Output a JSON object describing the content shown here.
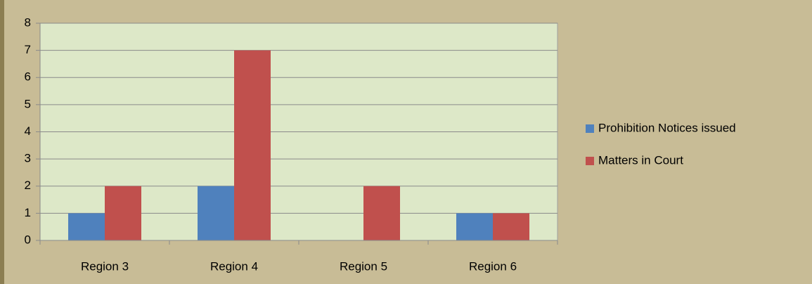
{
  "chart_data": {
    "type": "bar",
    "categories": [
      "Region 3",
      "Region 4",
      "Region 5",
      "Region 6"
    ],
    "series": [
      {
        "name": "Prohibition Notices issued",
        "color": "#4f81bd",
        "values": [
          1,
          2,
          0,
          1
        ]
      },
      {
        "name": "Matters in Court",
        "color": "#c0504d",
        "values": [
          2,
          7,
          2,
          1
        ]
      }
    ],
    "ylim": [
      0,
      8
    ],
    "yticks": [
      0,
      1,
      2,
      3,
      4,
      5,
      6,
      7,
      8
    ],
    "grid": true,
    "legend": "right"
  }
}
